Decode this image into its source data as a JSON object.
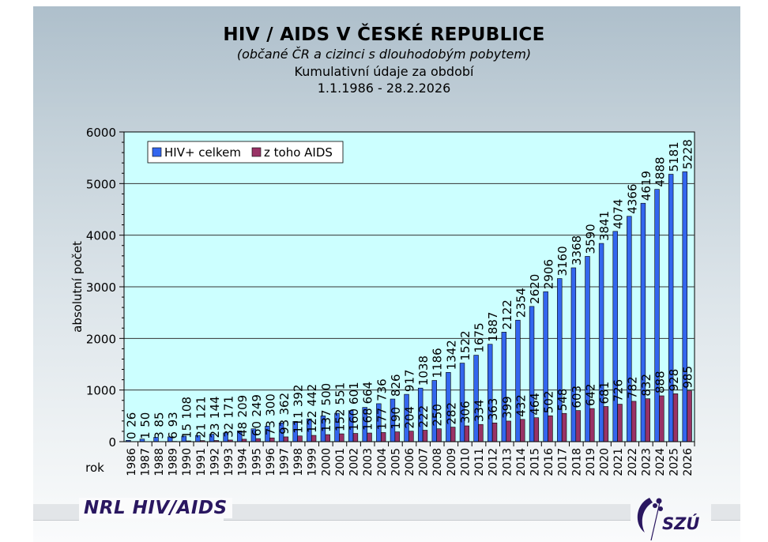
{
  "header": {
    "title": "HIV / AIDS V ČESKÉ REPUBLICE",
    "subtitle": "(občané ČR a cizinci s dlouhodobým pobytem)",
    "line3": "Kumulativní údaje za období",
    "period": "1.1.1986 - 28.2.2026"
  },
  "footer": {
    "left_label": "NRL HIV/AIDS",
    "logo_text": "SZÚ"
  },
  "chart_data": {
    "type": "bar",
    "title": "HIV / AIDS V ČESKÉ REPUBLICE",
    "xlabel": "rok",
    "ylabel": "absolutní počet",
    "ylim": [
      0,
      6000
    ],
    "yticks": [
      0,
      1000,
      2000,
      3000,
      4000,
      5000,
      6000
    ],
    "grid": true,
    "legend_position": "top-left",
    "categories": [
      "1986",
      "1987",
      "1988",
      "1989",
      "1990",
      "1991",
      "1992",
      "1993",
      "1994",
      "1995",
      "1996",
      "1997",
      "1998",
      "1999",
      "2000",
      "2001",
      "2002",
      "2003",
      "2004",
      "2005",
      "2006",
      "2007",
      "2008",
      "2009",
      "2010",
      "2011",
      "2012",
      "2013",
      "2014",
      "2015",
      "2016",
      "2017",
      "2018",
      "2019",
      "2020",
      "2021",
      "2022",
      "2023",
      "2024",
      "2025",
      "2026"
    ],
    "series": [
      {
        "name": "HIV+ celkem",
        "color": "#3366ee",
        "values": [
          26,
          50,
          85,
          93,
          108,
          121,
          144,
          171,
          209,
          249,
          300,
          362,
          392,
          442,
          500,
          551,
          601,
          664,
          736,
          826,
          917,
          1038,
          1186,
          1342,
          1522,
          1675,
          1887,
          2122,
          2354,
          2620,
          2906,
          3160,
          3368,
          3590,
          3841,
          4074,
          4366,
          4619,
          4888,
          5181,
          5228
        ]
      },
      {
        "name": "z toho AIDS",
        "color": "#993366",
        "values": [
          0,
          1,
          3,
          6,
          15,
          21,
          23,
          32,
          48,
          60,
          73,
          93,
          111,
          122,
          137,
          152,
          160,
          168,
          177,
          190,
          204,
          222,
          250,
          282,
          306,
          334,
          363,
          399,
          432,
          464,
          502,
          548,
          603,
          642,
          681,
          726,
          782,
          832,
          888,
          928,
          985
        ]
      }
    ]
  }
}
